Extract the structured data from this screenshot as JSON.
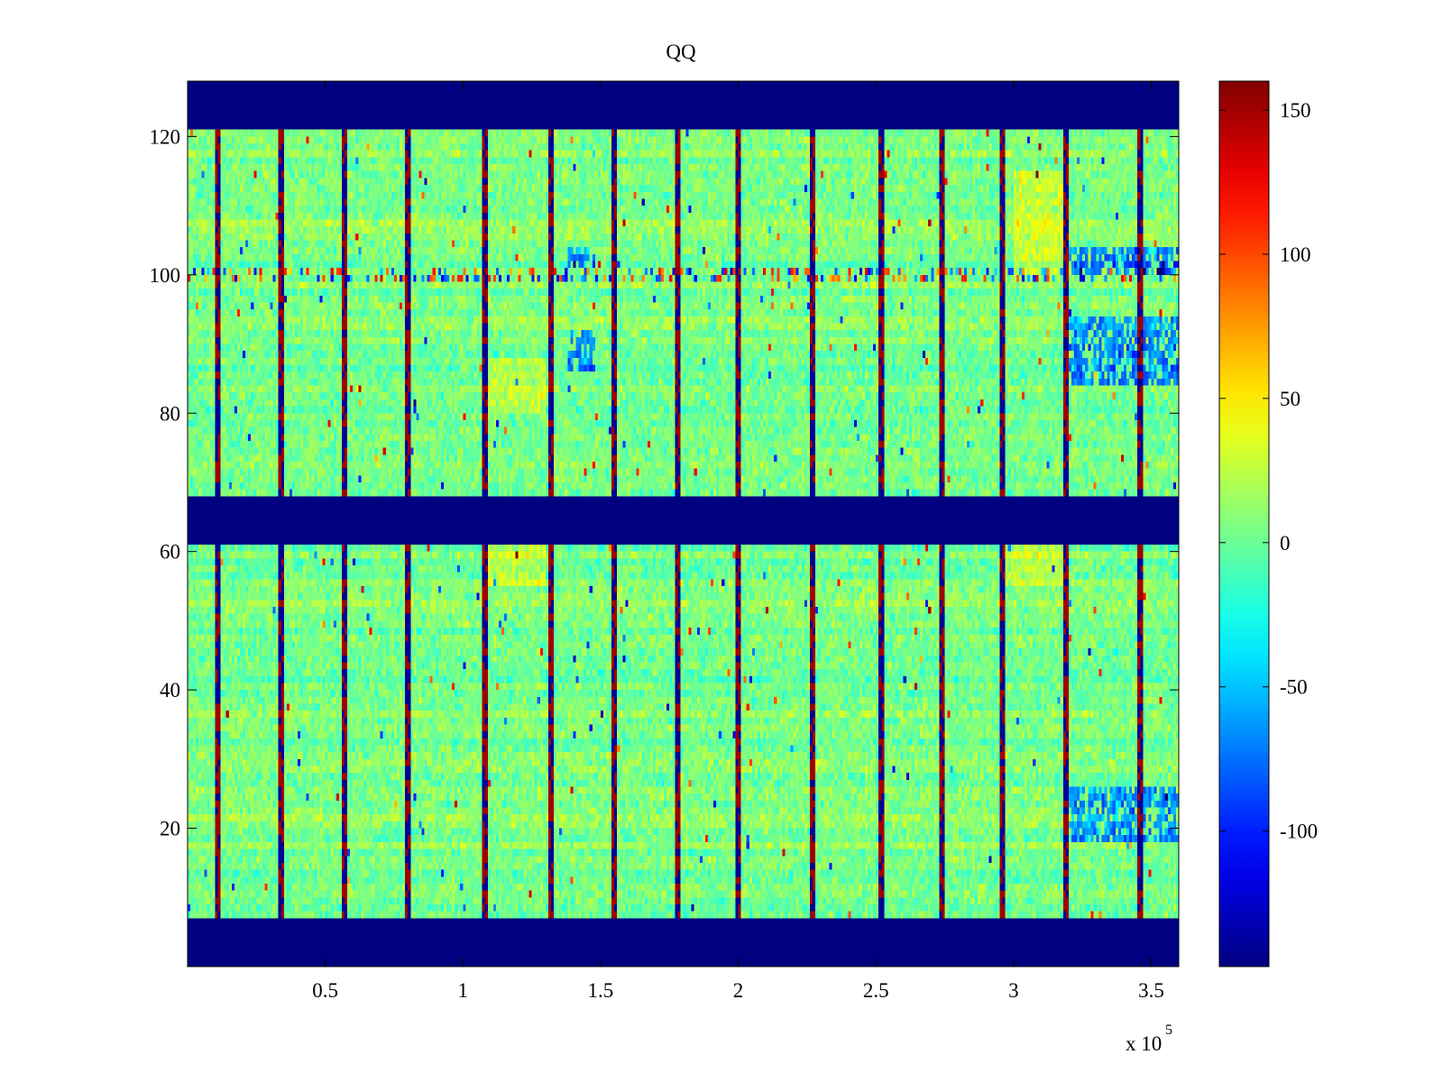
{
  "chart_data": {
    "type": "heatmap",
    "title": "QQ",
    "xlabel": "",
    "ylabel": "",
    "x_exponent_label": "x 10",
    "x_exponent_power": "5",
    "xlim": [
      0,
      360000
    ],
    "ylim": [
      0,
      128
    ],
    "x_ticks": [
      50000,
      100000,
      150000,
      200000,
      250000,
      300000,
      350000
    ],
    "x_tick_labels": [
      "0.5",
      "1",
      "1.5",
      "2",
      "2.5",
      "3",
      "3.5"
    ],
    "y_ticks": [
      20,
      40,
      60,
      80,
      100,
      120
    ],
    "y_tick_labels": [
      "20",
      "40",
      "60",
      "80",
      "100",
      "120"
    ],
    "clim": [
      -147,
      160
    ],
    "colorbar_ticks": [
      -100,
      -50,
      0,
      50,
      100,
      150
    ],
    "colorbar_tick_labels": [
      "-100",
      "-50",
      "0",
      "50",
      "100",
      "150"
    ],
    "colormap": "jet",
    "masked_row_bands": [
      {
        "y_from": 0,
        "y_to": 7,
        "value": -147
      },
      {
        "y_from": 61,
        "y_to": 68,
        "value": -147
      },
      {
        "y_from": 121,
        "y_to": 128,
        "value": -147
      }
    ],
    "bright_column_lines_x": [
      11000,
      34000,
      57000,
      80000,
      108000,
      132000,
      155000,
      178000,
      200000,
      227000,
      252000,
      274000,
      296000,
      319000,
      346000
    ],
    "hot_row_y": 100,
    "background_value": 5,
    "cool_regions": [
      {
        "x_from": 320000,
        "x_to": 360000,
        "y_from": 84,
        "y_to": 94
      },
      {
        "x_from": 320000,
        "x_to": 360000,
        "y_from": 100,
        "y_to": 104
      },
      {
        "x_from": 320000,
        "x_to": 360000,
        "y_from": 18,
        "y_to": 26
      },
      {
        "x_from": 138000,
        "x_to": 148000,
        "y_from": 86,
        "y_to": 92
      },
      {
        "x_from": 138000,
        "x_to": 148000,
        "y_from": 101,
        "y_to": 104
      }
    ],
    "warm_regions": [
      {
        "x_from": 108000,
        "x_to": 130000,
        "y_from": 80,
        "y_to": 88
      },
      {
        "x_from": 108000,
        "x_to": 130000,
        "y_from": 55,
        "y_to": 61
      },
      {
        "x_from": 296000,
        "x_to": 318000,
        "y_from": 55,
        "y_to": 61
      },
      {
        "x_from": 300000,
        "x_to": 318000,
        "y_from": 100,
        "y_to": 115
      }
    ]
  }
}
